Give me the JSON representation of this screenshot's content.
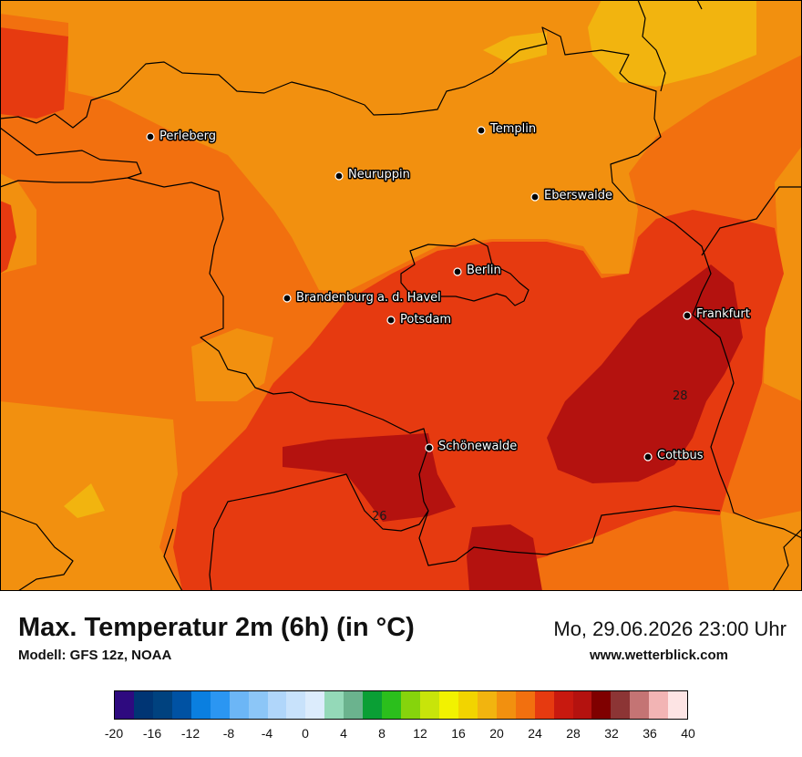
{
  "title": "Max. Temperatur 2m (6h) (in °C)",
  "model": "Modell: GFS 12z, NOAA",
  "datetime": "Mo, 29.06.2026 23:00 Uhr",
  "source": "www.wetterblick.com",
  "cities": [
    {
      "name": "Perleberg"
    },
    {
      "name": "Templin"
    },
    {
      "name": "Neuruppin"
    },
    {
      "name": "Eberswalde"
    },
    {
      "name": "Berlin"
    },
    {
      "name": "Brandenburg a. d. Havel"
    },
    {
      "name": "Potsdam"
    },
    {
      "name": "Frankfurt"
    },
    {
      "name": "Schönewalde"
    },
    {
      "name": "Cottbus"
    }
  ],
  "contour_labels": [
    "28",
    "26"
  ],
  "legend": {
    "colors": [
      "#2e0a7f",
      "#003574",
      "#00427f",
      "#0052a3",
      "#0a7fe0",
      "#2b96f2",
      "#6cb6f6",
      "#8cc6f7",
      "#b0d6fa",
      "#c8e2fb",
      "#dcecfc",
      "#94d9b8",
      "#6bb38e",
      "#0a9f35",
      "#2bbf1c",
      "#86d40c",
      "#c8e40a",
      "#f2f200",
      "#f2d400",
      "#f2b40f",
      "#f2900f",
      "#f2700f",
      "#e63a10",
      "#c8190f",
      "#b4120f",
      "#7f0000",
      "#8c3535",
      "#c47474",
      "#f2b4b4",
      "#fde4e4"
    ],
    "ticks": [
      "-20",
      "-16",
      "-12",
      "-8",
      "-4",
      "0",
      "4",
      "8",
      "12",
      "16",
      "20",
      "24",
      "28",
      "32",
      "36",
      "40"
    ]
  }
}
